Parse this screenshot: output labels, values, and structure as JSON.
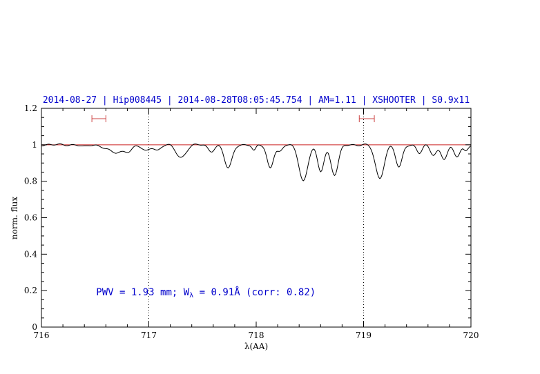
{
  "chart_data": {
    "type": "line",
    "title": "2014-08-27 | Hip008445 | 2014-08-28T08:05:45.754 | AM=1.11 | XSHOOTER | S0.9x11",
    "xlabel": "λ(AA)",
    "ylabel": "norm. flux",
    "xlim": [
      716,
      720
    ],
    "ylim": [
      0,
      1.2
    ],
    "x_ticks": [
      716,
      717,
      718,
      719,
      720
    ],
    "x_tick_labels": [
      "716",
      "717",
      "718",
      "719",
      "720"
    ],
    "x_minor_step": 0.2,
    "y_ticks": [
      0,
      0.2,
      0.4,
      0.6,
      0.8,
      1,
      1.2
    ],
    "y_tick_labels": [
      "0",
      "0.2",
      "0.4",
      "0.6",
      "0.8",
      "1",
      "1.2"
    ],
    "y_minor_step": 0.05,
    "grid": "dotted-vlines-only",
    "legend": "none",
    "dotted_vlines": [
      717,
      719
    ],
    "continuum_level": 1.0,
    "colors": {
      "spectrum": "#000000",
      "continuum": "#cc2222",
      "range_marker": "#cc4444",
      "annotation_blue": "#0000cc",
      "axis": "#000000"
    },
    "range_markers": [
      {
        "x1": 716.47,
        "x2": 716.6,
        "y": 1.143
      },
      {
        "x1": 718.96,
        "x2": 719.1,
        "y": 1.143
      }
    ],
    "annotation": {
      "prefix": "PWV  =  1.93  mm; W",
      "sub": "λ",
      "suffix": "  =  0.91Å  (corr: 0.82)",
      "x": 716.51,
      "y": 0.175
    },
    "series": [
      {
        "name": "normalized spectrum",
        "model": "continuum 1.0 minus gaussian absorption lines",
        "sample_step": 0.01,
        "absorption_lines": [
          {
            "center": 716.4,
            "depth": 0.012,
            "sigma": 0.03
          },
          {
            "center": 716.7,
            "depth": 0.045,
            "sigma": 0.08
          },
          {
            "center": 716.82,
            "depth": 0.02,
            "sigma": 0.03
          },
          {
            "center": 716.97,
            "depth": 0.035,
            "sigma": 0.035
          },
          {
            "center": 717.08,
            "depth": 0.03,
            "sigma": 0.03
          },
          {
            "center": 717.3,
            "depth": 0.07,
            "sigma": 0.045
          },
          {
            "center": 717.58,
            "depth": 0.035,
            "sigma": 0.03
          },
          {
            "center": 717.74,
            "depth": 0.13,
            "sigma": 0.035
          },
          {
            "center": 717.98,
            "depth": 0.035,
            "sigma": 0.018
          },
          {
            "center": 718.13,
            "depth": 0.125,
            "sigma": 0.03
          },
          {
            "center": 718.22,
            "depth": 0.04,
            "sigma": 0.025
          },
          {
            "center": 718.44,
            "depth": 0.2,
            "sigma": 0.04
          },
          {
            "center": 718.6,
            "depth": 0.145,
            "sigma": 0.03
          },
          {
            "center": 718.73,
            "depth": 0.165,
            "sigma": 0.035
          },
          {
            "center": 719.15,
            "depth": 0.185,
            "sigma": 0.04
          },
          {
            "center": 719.33,
            "depth": 0.125,
            "sigma": 0.03
          },
          {
            "center": 719.52,
            "depth": 0.045,
            "sigma": 0.025
          },
          {
            "center": 719.65,
            "depth": 0.055,
            "sigma": 0.03
          },
          {
            "center": 719.75,
            "depth": 0.075,
            "sigma": 0.03
          },
          {
            "center": 719.87,
            "depth": 0.065,
            "sigma": 0.03
          },
          {
            "center": 719.95,
            "depth": 0.03,
            "sigma": 0.02
          }
        ],
        "noise": {
          "a1": 0.004,
          "f1": 55.3,
          "a2": 0.0025,
          "f2": 23.7
        }
      }
    ]
  }
}
